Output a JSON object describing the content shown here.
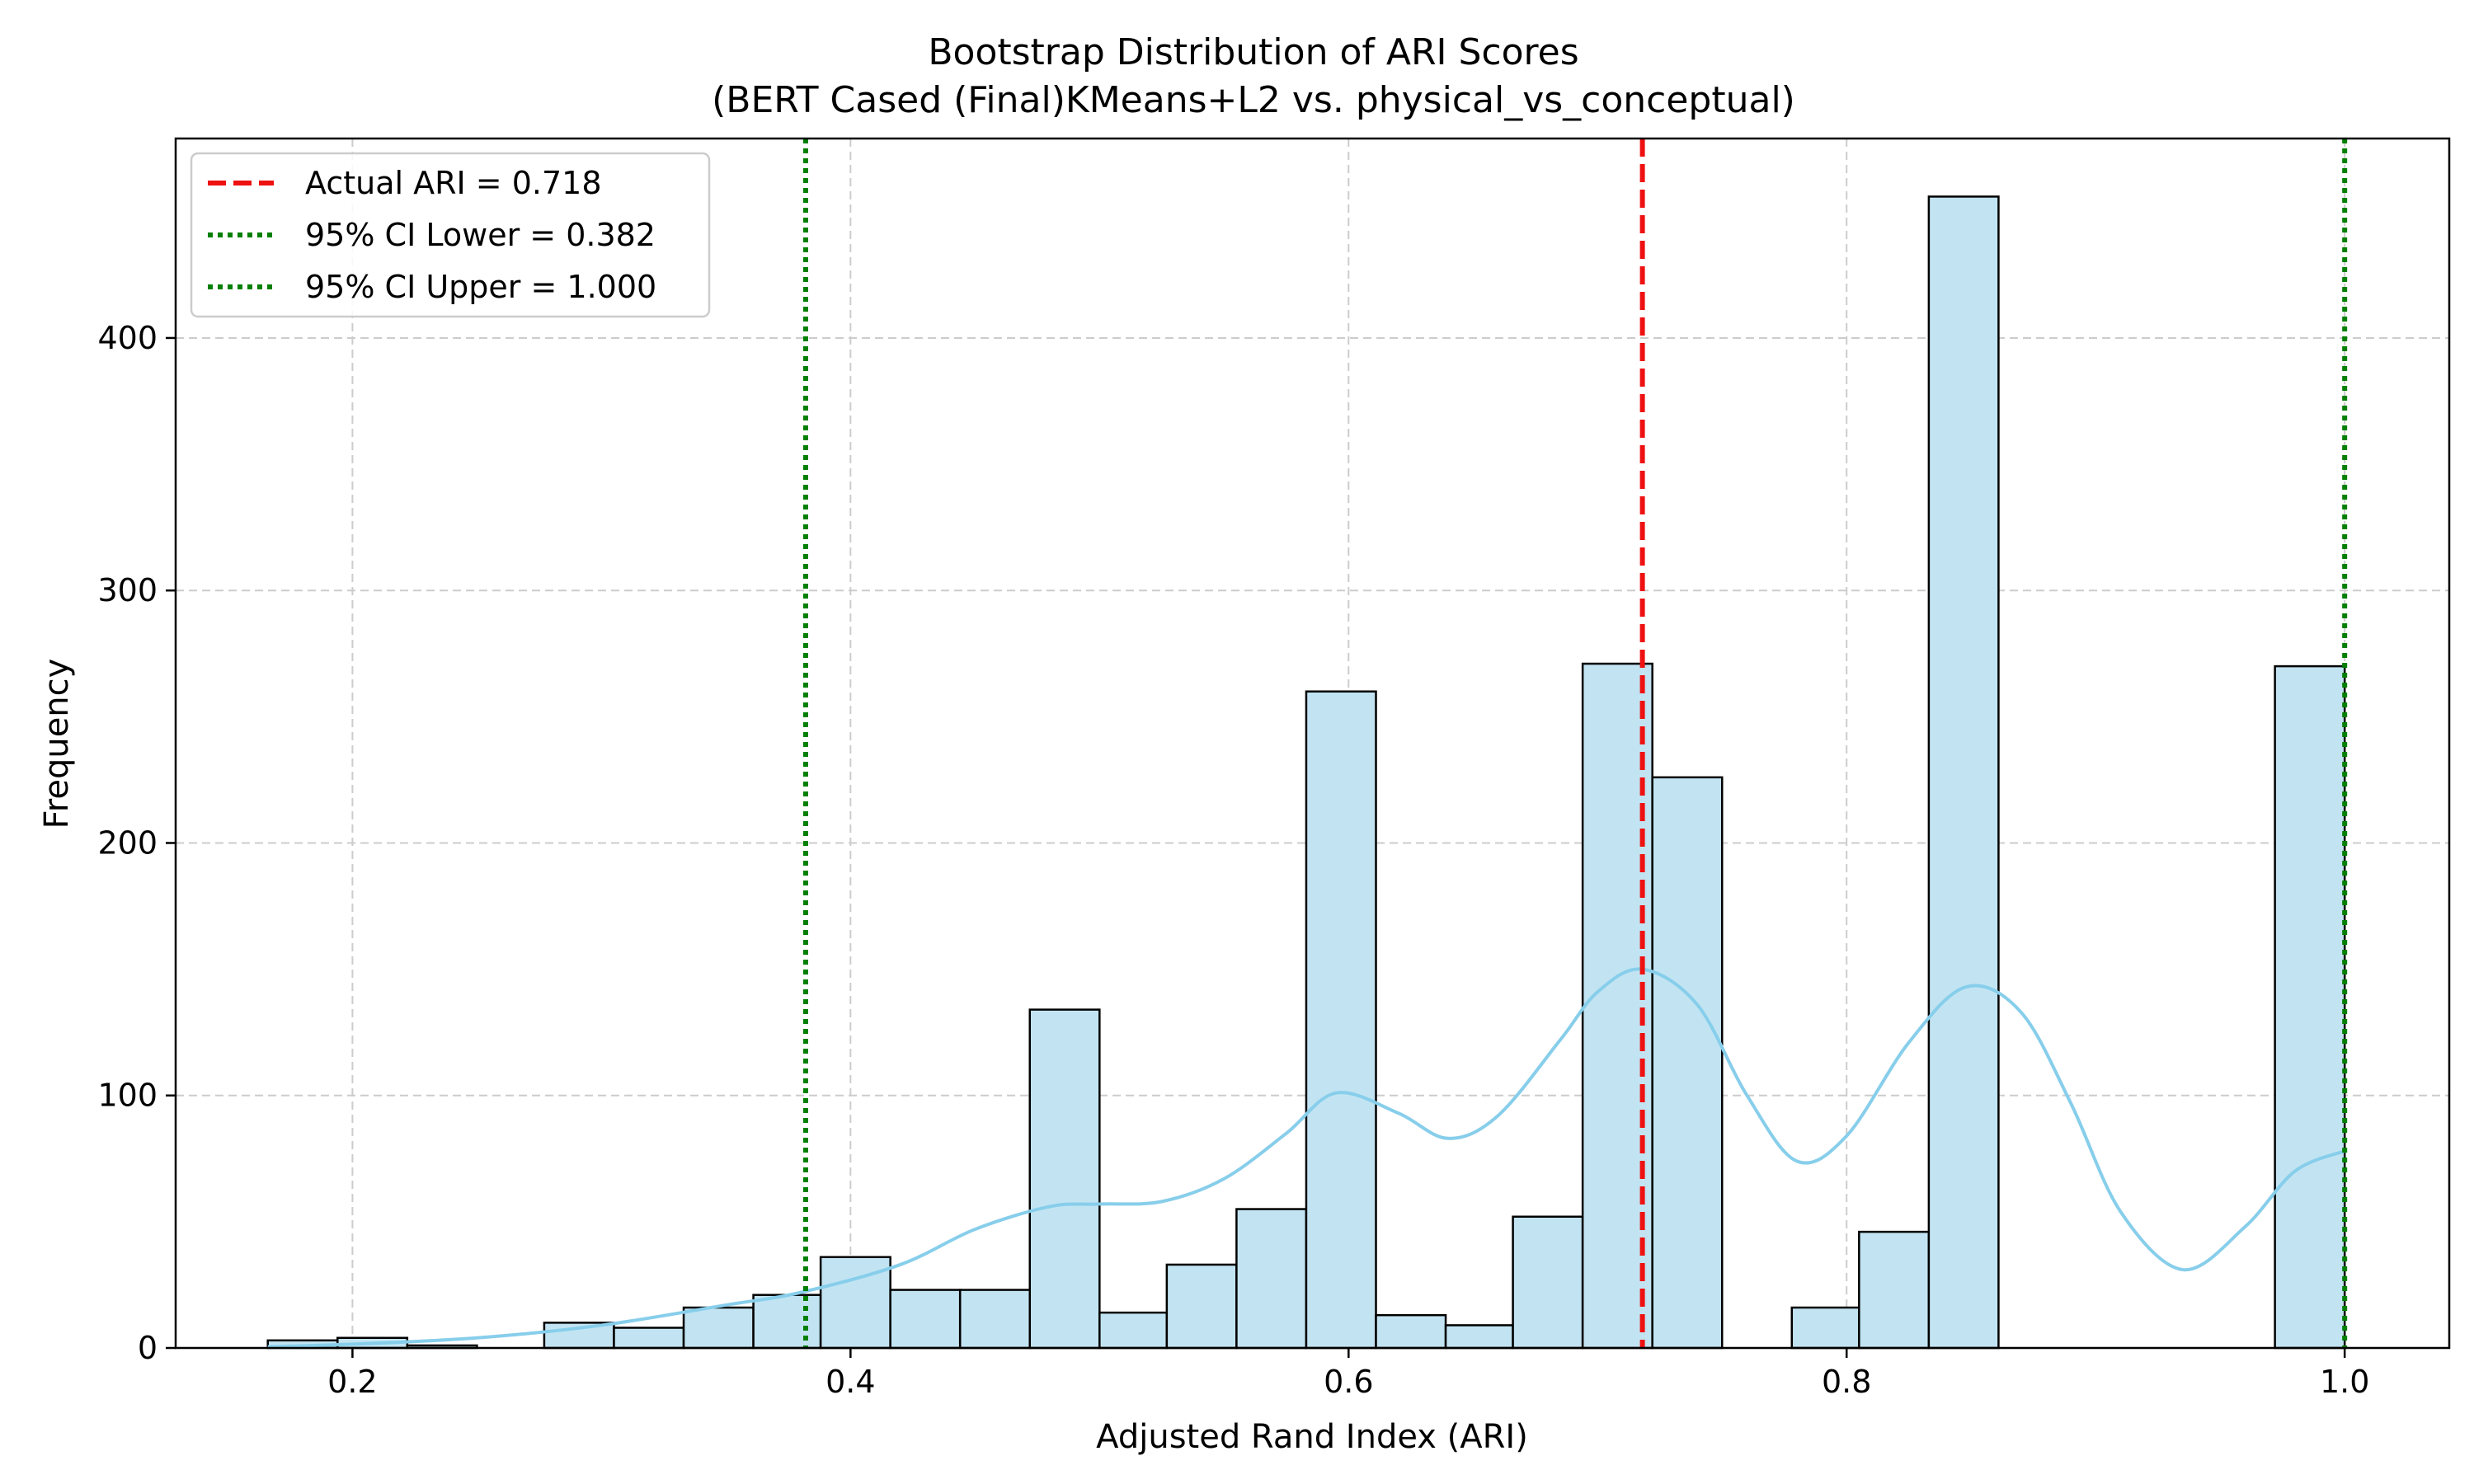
{
  "chart_data": {
    "type": "bar",
    "title_line1": "Bootstrap Distribution of ARI Scores",
    "title_line2": "(BERT Cased (Final)KMeans+L2 vs. physical_vs_conceptual)",
    "xlabel": "Adjusted Rand Index (ARI)",
    "ylabel": "Frequency",
    "xlim": [
      0.129,
      1.042
    ],
    "ylim": [
      0,
      479
    ],
    "xticks": [
      0.2,
      0.4,
      0.6,
      0.8,
      1.0
    ],
    "xtick_labels": [
      "0.2",
      "0.4",
      "0.6",
      "0.8",
      "1.0"
    ],
    "yticks": [
      0,
      100,
      200,
      300,
      400
    ],
    "ytick_labels": [
      "0",
      "100",
      "200",
      "300",
      "400"
    ],
    "grid": true,
    "legend_position": "top-left",
    "bin_edges": [
      0.166,
      0.194,
      0.222,
      0.25,
      0.277,
      0.305,
      0.333,
      0.361,
      0.388,
      0.416,
      0.444,
      0.472,
      0.5,
      0.527,
      0.555,
      0.583,
      0.611,
      0.639,
      0.666,
      0.694,
      0.722,
      0.75,
      0.778,
      0.805,
      0.833,
      0.861,
      0.889,
      0.916,
      0.944,
      0.972,
      1.0
    ],
    "counts": [
      3,
      4,
      1,
      0,
      10,
      8,
      16,
      21,
      36,
      23,
      23,
      134,
      14,
      33,
      55,
      260,
      13,
      9,
      52,
      271,
      226,
      0,
      16,
      46,
      456,
      0,
      0,
      0,
      0,
      270
    ],
    "kde": {
      "x": [
        0.166,
        0.2,
        0.25,
        0.3,
        0.35,
        0.38,
        0.42,
        0.45,
        0.48,
        0.5,
        0.525,
        0.55,
        0.575,
        0.595,
        0.62,
        0.64,
        0.66,
        0.685,
        0.7,
        0.718,
        0.74,
        0.76,
        0.78,
        0.8,
        0.825,
        0.848,
        0.87,
        0.89,
        0.91,
        0.935,
        0.96,
        0.98,
        1.0
      ],
      "y": [
        0.5,
        1.5,
        4,
        9,
        17,
        22,
        33,
        47,
        56,
        57,
        58,
        67,
        85,
        101,
        93,
        83,
        92,
        122,
        141,
        150,
        136,
        100,
        74,
        84,
        121,
        143,
        133,
        97,
        54,
        31,
        48,
        70,
        78
      ]
    },
    "lines": [
      {
        "label": "Actual ARI = 0.718",
        "x": 0.718,
        "color": "#ee1111",
        "style": "dashed"
      },
      {
        "label": "95% CI Lower = 0.382",
        "x": 0.382,
        "color": "#007f00",
        "style": "dotted"
      },
      {
        "label": "95% CI Upper = 1.000",
        "x": 1.0,
        "color": "#007f00",
        "style": "dotted"
      }
    ],
    "colors": {
      "bar_fill": "#c2e4f2",
      "bar_edge": "#000000",
      "kde": "#87ceeb",
      "grid": "#cccccc"
    }
  }
}
